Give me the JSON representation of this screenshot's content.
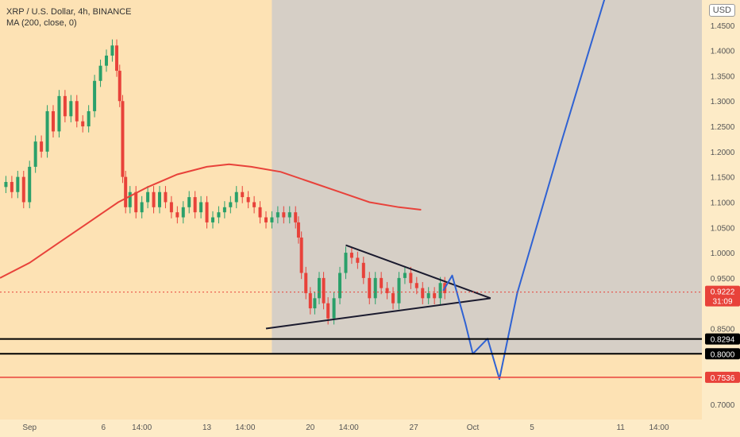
{
  "header": {
    "symbol_line": "XRP / U.S. Dollar, 4h, BINANCE",
    "indicator_line": "MA (200, close, 0)",
    "currency_button": "USD"
  },
  "colors": {
    "background": "#fde2b4",
    "shaded_zone": "#d6cfc6",
    "axis_panel": "#fdebc7",
    "ma_line": "#e8423a",
    "candle_up": "#2aa06a",
    "candle_down": "#e8423a",
    "projection": "#2f62d3",
    "trendline": "#1a1a2e",
    "level_line": "#000000",
    "red_level": "#e8423a",
    "current_price_label": "#e8423a",
    "level_label": "#000000"
  },
  "chart_data": {
    "type": "candlestick",
    "title": "XRP / U.S. Dollar, 4h, BINANCE",
    "indicator": "MA (200, close, 0)",
    "ylim": [
      0.67,
      1.5
    ],
    "y_ticks": [
      "1.4500",
      "1.4000",
      "1.3500",
      "1.3000",
      "1.2500",
      "1.2000",
      "1.1500",
      "1.1000",
      "1.0500",
      "1.0000",
      "0.9500",
      "0.8500",
      "0.7000"
    ],
    "x_ticks": [
      {
        "label": "Sep",
        "t": 0
      },
      {
        "label": "6",
        "t": 5
      },
      {
        "label": "14:00",
        "t": 7.6
      },
      {
        "label": "13",
        "t": 12
      },
      {
        "label": "14:00",
        "t": 14.6
      },
      {
        "label": "20",
        "t": 19
      },
      {
        "label": "14:00",
        "t": 21.6
      },
      {
        "label": "27",
        "t": 26
      },
      {
        "label": "Oct",
        "t": 30
      },
      {
        "label": "5",
        "t": 34
      },
      {
        "label": "11",
        "t": 40
      },
      {
        "label": "14:00",
        "t": 42.6
      }
    ],
    "x_range": [
      -2,
      45.5
    ],
    "price_series": [
      [
        -2.0,
        1.13
      ],
      [
        -1.6,
        1.14
      ],
      [
        -1.2,
        1.12
      ],
      [
        -0.8,
        1.15
      ],
      [
        -0.4,
        1.1
      ],
      [
        0.0,
        1.17
      ],
      [
        0.4,
        1.22
      ],
      [
        0.8,
        1.2
      ],
      [
        1.2,
        1.28
      ],
      [
        1.6,
        1.24
      ],
      [
        2.0,
        1.31
      ],
      [
        2.4,
        1.27
      ],
      [
        2.8,
        1.3
      ],
      [
        3.2,
        1.26
      ],
      [
        3.6,
        1.25
      ],
      [
        4.0,
        1.28
      ],
      [
        4.4,
        1.34
      ],
      [
        4.8,
        1.37
      ],
      [
        5.2,
        1.39
      ],
      [
        5.6,
        1.41
      ],
      [
        5.9,
        1.36
      ],
      [
        6.1,
        1.3
      ],
      [
        6.3,
        1.15
      ],
      [
        6.5,
        1.09
      ],
      [
        6.8,
        1.12
      ],
      [
        7.2,
        1.08
      ],
      [
        7.6,
        1.1
      ],
      [
        8.0,
        1.12
      ],
      [
        8.4,
        1.09
      ],
      [
        8.8,
        1.12
      ],
      [
        9.2,
        1.1
      ],
      [
        9.6,
        1.08
      ],
      [
        10.0,
        1.07
      ],
      [
        10.4,
        1.09
      ],
      [
        10.8,
        1.11
      ],
      [
        11.2,
        1.08
      ],
      [
        11.6,
        1.1
      ],
      [
        12.0,
        1.06
      ],
      [
        12.4,
        1.07
      ],
      [
        12.8,
        1.08
      ],
      [
        13.2,
        1.09
      ],
      [
        13.6,
        1.1
      ],
      [
        14.0,
        1.12
      ],
      [
        14.4,
        1.11
      ],
      [
        14.8,
        1.1
      ],
      [
        15.2,
        1.09
      ],
      [
        15.6,
        1.07
      ],
      [
        16.0,
        1.06
      ],
      [
        16.4,
        1.07
      ],
      [
        16.8,
        1.08
      ],
      [
        17.2,
        1.07
      ],
      [
        17.6,
        1.08
      ],
      [
        18.0,
        1.06
      ],
      [
        18.2,
        1.03
      ],
      [
        18.4,
        0.96
      ],
      [
        18.7,
        0.92
      ],
      [
        19.0,
        0.89
      ],
      [
        19.3,
        0.91
      ],
      [
        19.6,
        0.95
      ],
      [
        19.9,
        0.9
      ],
      [
        20.2,
        0.87
      ],
      [
        20.6,
        0.91
      ],
      [
        21.0,
        0.96
      ],
      [
        21.4,
        1.0
      ],
      [
        21.8,
        0.99
      ],
      [
        22.2,
        0.98
      ],
      [
        22.6,
        0.95
      ],
      [
        23.0,
        0.91
      ],
      [
        23.4,
        0.95
      ],
      [
        23.8,
        0.93
      ],
      [
        24.2,
        0.92
      ],
      [
        24.6,
        0.9
      ],
      [
        25.0,
        0.95
      ],
      [
        25.4,
        0.96
      ],
      [
        25.8,
        0.94
      ],
      [
        26.2,
        0.93
      ],
      [
        26.6,
        0.91
      ],
      [
        27.0,
        0.92
      ],
      [
        27.4,
        0.91
      ],
      [
        27.8,
        0.94
      ],
      [
        28.1,
        0.92
      ]
    ],
    "ma_200": [
      [
        -2.0,
        0.95
      ],
      [
        0,
        0.98
      ],
      [
        2,
        1.02
      ],
      [
        4,
        1.06
      ],
      [
        6,
        1.1
      ],
      [
        8,
        1.13
      ],
      [
        10,
        1.155
      ],
      [
        12,
        1.17
      ],
      [
        13.5,
        1.175
      ],
      [
        15,
        1.17
      ],
      [
        17,
        1.16
      ],
      [
        19,
        1.14
      ],
      [
        21,
        1.12
      ],
      [
        23,
        1.1
      ],
      [
        25,
        1.09
      ],
      [
        26.5,
        1.085
      ]
    ],
    "shaded_zone": {
      "t_start": 16.4,
      "t_end": 45.5,
      "price_top": 1.5,
      "price_bottom": 0.8
    },
    "triangle": {
      "upper": [
        [
          21.4,
          1.015
        ],
        [
          31.2,
          0.91
        ]
      ],
      "lower": [
        [
          16.0,
          0.85
        ],
        [
          31.2,
          0.91
        ]
      ]
    },
    "projection_path": [
      [
        28.0,
        0.925
      ],
      [
        28.6,
        0.955
      ],
      [
        29.5,
        0.86
      ],
      [
        30.0,
        0.8
      ],
      [
        31.0,
        0.83
      ],
      [
        31.8,
        0.75
      ],
      [
        33.0,
        0.92
      ],
      [
        36.0,
        1.22
      ],
      [
        39.0,
        1.51
      ]
    ],
    "levels": [
      {
        "price": 0.8294,
        "label": "0.8294",
        "style": "black"
      },
      {
        "price": 0.8,
        "label": "0.8000",
        "style": "black"
      },
      {
        "price": 0.7536,
        "label": "0.7536",
        "style": "red"
      }
    ],
    "current_price": {
      "price": 0.9222,
      "label": "0.9222",
      "countdown": "31:09"
    }
  }
}
